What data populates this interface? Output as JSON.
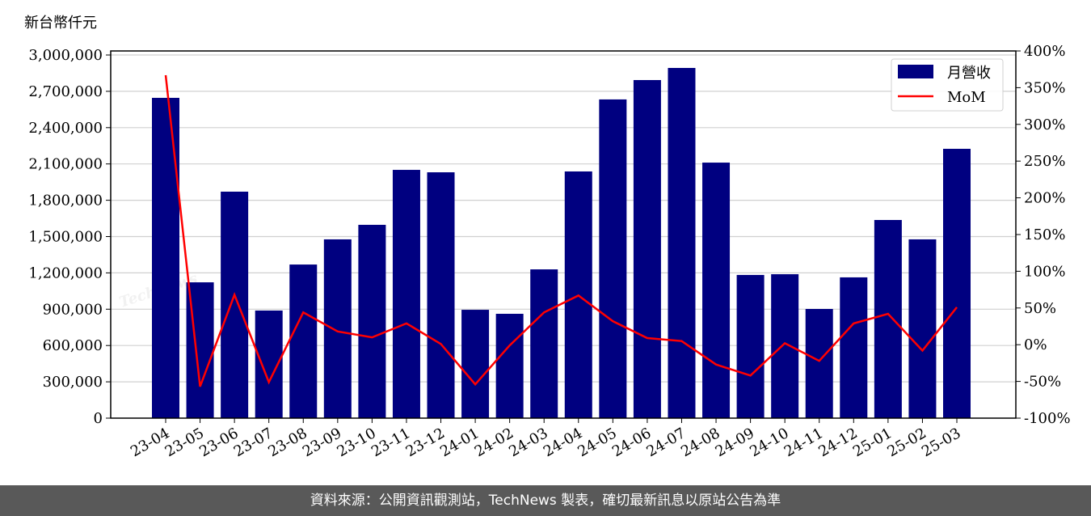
{
  "unit_label": "新台幣仟元",
  "footer": "資料來源：公開資訊觀測站，TechNews 製表，確切最新訊息以原站公告為準",
  "watermark": "TechNews",
  "colors": {
    "bar": "#000080",
    "line": "#ff0000",
    "footer_bg": "#595959"
  },
  "chart_data": {
    "type": "bar+line",
    "categories": [
      "23-04",
      "23-05",
      "23-06",
      "23-07",
      "23-08",
      "23-09",
      "23-10",
      "23-11",
      "23-12",
      "24-01",
      "24-02",
      "24-03",
      "24-04",
      "24-05",
      "24-06",
      "24-07",
      "24-08",
      "24-09",
      "24-10",
      "24-11",
      "24-12",
      "25-01",
      "25-02",
      "25-03"
    ],
    "series": [
      {
        "name": "月營收",
        "type": "bar",
        "axis": "left",
        "values": [
          2646000,
          1122000,
          1871000,
          889000,
          1269000,
          1477000,
          1597000,
          2051000,
          2031000,
          895000,
          862000,
          1229000,
          2038000,
          2633000,
          2793000,
          2893000,
          2111000,
          1183000,
          1189000,
          902000,
          1163000,
          1637000,
          1477000,
          2225000
        ]
      },
      {
        "name": "MoM",
        "type": "line",
        "axis": "right",
        "values": [
          367,
          -57,
          68,
          -51,
          44,
          18,
          10,
          29,
          1,
          -54,
          -1,
          44,
          67,
          32,
          9,
          5,
          -27,
          -42,
          2,
          -22,
          29,
          42,
          -8,
          51
        ]
      }
    ],
    "left_axis": {
      "ticks": [
        "0",
        "300,000",
        "600,000",
        "900,000",
        "1,200,000",
        "1,500,000",
        "1,800,000",
        "2,100,000",
        "2,400,000",
        "2,700,000",
        "3,000,000"
      ],
      "ylim": [
        0,
        3000000
      ]
    },
    "right_axis": {
      "ticks": [
        "-100%",
        "-50%",
        "0%",
        "50%",
        "100%",
        "150%",
        "200%",
        "250%",
        "300%",
        "350%",
        "400%"
      ],
      "ylim": [
        -100,
        400
      ]
    },
    "grid": "horizontal",
    "legend": "top-right"
  }
}
